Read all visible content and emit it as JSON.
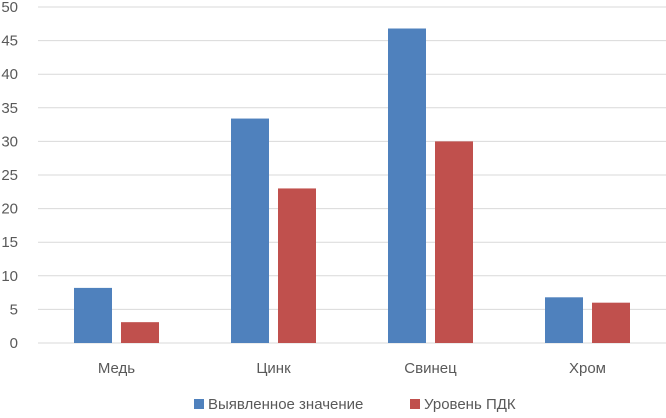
{
  "chart_data": {
    "type": "bar",
    "title": "",
    "xlabel": "",
    "ylabel": "",
    "categories": [
      "Медь",
      "Цинк",
      "Свинец",
      "Хром"
    ],
    "series": [
      {
        "name": "Выявленное значение",
        "color": "#4f81bd",
        "values": [
          8.2,
          33.4,
          46.8,
          6.8
        ]
      },
      {
        "name": "Уровень ПДК",
        "color": "#c0504d",
        "values": [
          3.1,
          23.0,
          30.0,
          6.0
        ]
      }
    ],
    "ylim": [
      0,
      50
    ],
    "yticks": [
      0,
      5,
      10,
      15,
      20,
      25,
      30,
      35,
      40,
      45,
      50
    ],
    "grid": true,
    "legend_position": "bottom"
  }
}
